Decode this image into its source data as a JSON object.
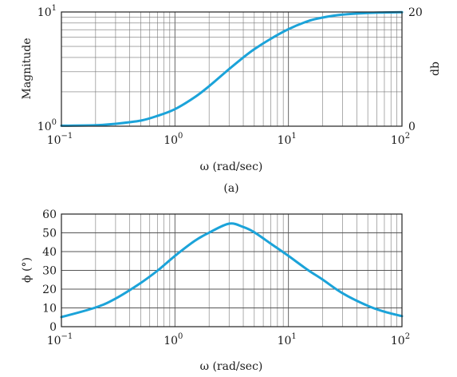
{
  "chart_data": [
    {
      "type": "line",
      "scale": {
        "x": "log",
        "y": "log"
      },
      "xlim": [
        0.1,
        100
      ],
      "ylim": [
        1,
        10
      ],
      "xlabel": "ω (rad/sec)",
      "ylabel": "Magnitude",
      "y2label": "db",
      "y2_ticks": [
        "0",
        "20"
      ],
      "caption": "(a)",
      "x_ticks": [
        {
          "base": "10",
          "exp": "−1"
        },
        {
          "base": "10",
          "exp": "0"
        },
        {
          "base": "10",
          "exp": "1"
        },
        {
          "base": "10",
          "exp": "2"
        }
      ],
      "y_ticks": [
        {
          "base": "10",
          "exp": "0"
        },
        {
          "base": "10",
          "exp": "1"
        }
      ],
      "grid": true,
      "color": "#1ba3d9",
      "series": [
        {
          "x": [
            0.1,
            0.2,
            0.3,
            0.5,
            0.7,
            1,
            1.5,
            2,
            3,
            4,
            5,
            7,
            10,
            15,
            20,
            30,
            50,
            70,
            100
          ],
          "values": [
            1.01,
            1.02,
            1.05,
            1.12,
            1.23,
            1.41,
            1.8,
            2.24,
            3.16,
            4.0,
            4.72,
            5.83,
            7.07,
            8.34,
            8.94,
            9.49,
            9.81,
            9.9,
            9.95
          ]
        }
      ]
    },
    {
      "type": "line",
      "scale": {
        "x": "log",
        "y": "linear"
      },
      "xlim": [
        0.1,
        100
      ],
      "ylim": [
        0,
        60
      ],
      "xlabel": "ω (rad/sec)",
      "ylabel": "ϕ (°)",
      "x_ticks": [
        {
          "base": "10",
          "exp": "−1"
        },
        {
          "base": "10",
          "exp": "0"
        },
        {
          "base": "10",
          "exp": "1"
        },
        {
          "base": "10",
          "exp": "2"
        }
      ],
      "y_ticks": [
        "0",
        "10",
        "20",
        "30",
        "40",
        "50",
        "60"
      ],
      "grid": true,
      "color": "#1ba3d9",
      "series": [
        {
          "x": [
            0.1,
            0.2,
            0.3,
            0.5,
            0.7,
            1,
            1.5,
            2,
            3,
            4,
            5,
            7,
            10,
            15,
            20,
            30,
            50,
            70,
            100
          ],
          "values": [
            5.1,
            10.2,
            15.0,
            23.3,
            29.8,
            37.7,
            45.8,
            50.1,
            54.9,
            53.1,
            50.3,
            44.2,
            37.7,
            30.0,
            25.1,
            17.8,
            11.1,
            8.0,
            5.6
          ]
        }
      ]
    }
  ]
}
